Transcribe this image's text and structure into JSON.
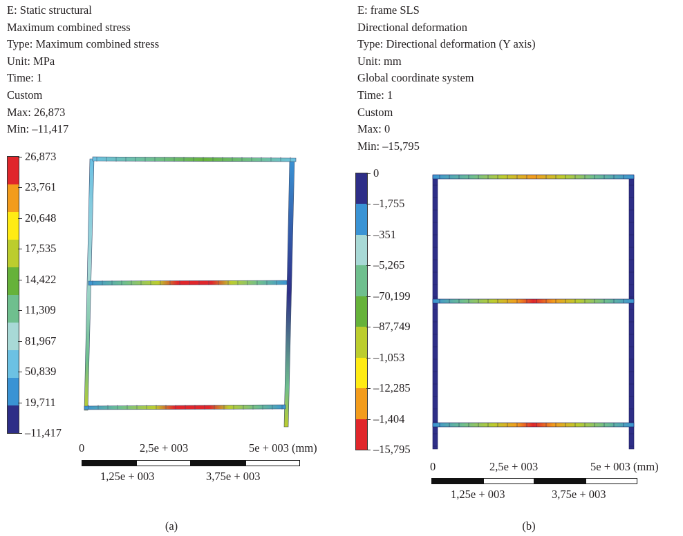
{
  "panel_a": {
    "header": [
      "E: Static structural",
      "Maximum combined stress",
      "Type: Maximum combined stress",
      "Unit: MPa",
      "Time: 1",
      "Custom",
      "Max: 26,873",
      "Min: –11,417"
    ],
    "legend_labels": [
      "26,873",
      "23,761",
      "20,648",
      "17,535",
      "14,422",
      "11,309",
      "81,967",
      "50,839",
      "19,711",
      "–11,417"
    ],
    "legend_colors": [
      "#e0262b",
      "#f39c1c",
      "#ffeb14",
      "#bccd2e",
      "#66b23a",
      "#6fbf8e",
      "#a8d9d6",
      "#6cc1e3",
      "#3a93d4",
      "#2e2e87"
    ],
    "scale": {
      "zero": "0",
      "mid_top": "2,5e + 003",
      "end_top": "5e + 003 (mm)",
      "q1": "1,25e + 003",
      "q3": "3,75e + 003"
    },
    "caption": "(a)"
  },
  "panel_b": {
    "header": [
      "E: frame SLS",
      "Directional deformation",
      "Type: Directional deformation (Y axis)",
      "Unit: mm",
      "Global coordinate system",
      "Time: 1",
      "Custom",
      "Max: 0",
      "Min: –15,795"
    ],
    "legend_labels": [
      "0",
      "–1,755",
      "–351",
      "–5,265",
      "–70,199",
      "–87,749",
      "–1,053",
      "–12,285",
      "–1,404",
      "–15,795"
    ],
    "legend_colors": [
      "#2e2e87",
      "#3a93d4",
      "#a8d9d6",
      "#6fbf8e",
      "#66b23a",
      "#bccd2e",
      "#ffeb14",
      "#f39c1c",
      "#e0262b"
    ],
    "scale": {
      "zero": "0",
      "mid_top": "2,5e + 003",
      "end_top": "5e + 003 (mm)",
      "q1": "1,25e + 003",
      "q3": "3,75e + 003"
    },
    "caption": "(b)"
  }
}
